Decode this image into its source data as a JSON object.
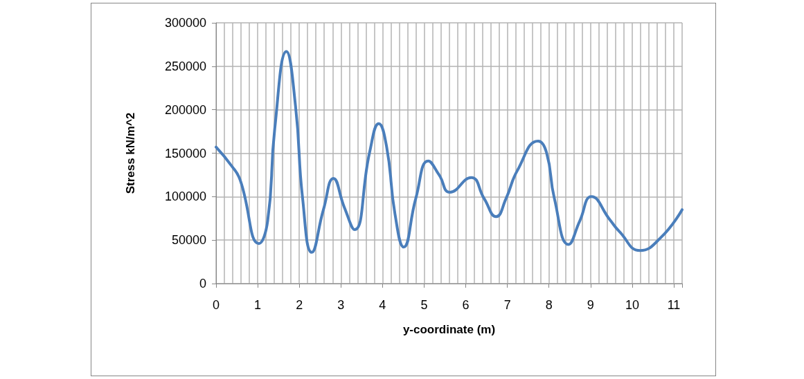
{
  "chart_data": {
    "type": "line",
    "xlabel": "y-coordinate (m)",
    "ylabel": "Stress kN/m^2",
    "x": [
      0,
      0.38,
      0.58,
      1.03,
      1.24,
      1.41,
      1.69,
      1.91,
      2.08,
      2.3,
      2.58,
      2.82,
      3.08,
      3.33,
      3.69,
      3.91,
      4.1,
      4.3,
      4.51,
      4.8,
      5.1,
      5.36,
      5.62,
      6.13,
      6.44,
      6.73,
      6.97,
      7.24,
      7.74,
      7.94,
      8.13,
      8.47,
      8.74,
      9.02,
      9.47,
      9.69,
      10.19,
      10.69,
      11.2
    ],
    "series": [
      {
        "color": "#4a7ebb",
        "values": [
          157000,
          135000,
          119000,
          46000,
          72000,
          178000,
          267000,
          204000,
          98000,
          36000,
          85000,
          121000,
          88000,
          62000,
          151000,
          184000,
          157000,
          80000,
          42000,
          98000,
          141000,
          125000,
          105000,
          122000,
          98000,
          77000,
          98000,
          130000,
          164000,
          151000,
          98000,
          45000,
          72000,
          100000,
          73000,
          60000,
          38000,
          53000,
          85000
        ]
      }
    ],
    "xlim": [
      0,
      11.2
    ],
    "xticks": [
      0,
      1,
      2,
      3,
      4,
      5,
      6,
      7,
      8,
      9,
      10,
      11
    ],
    "ylim": [
      0,
      300000
    ],
    "yticks": [
      0,
      50000,
      100000,
      150000,
      200000,
      250000,
      300000
    ],
    "grid": true,
    "marker": "none",
    "line_style": "solid"
  }
}
